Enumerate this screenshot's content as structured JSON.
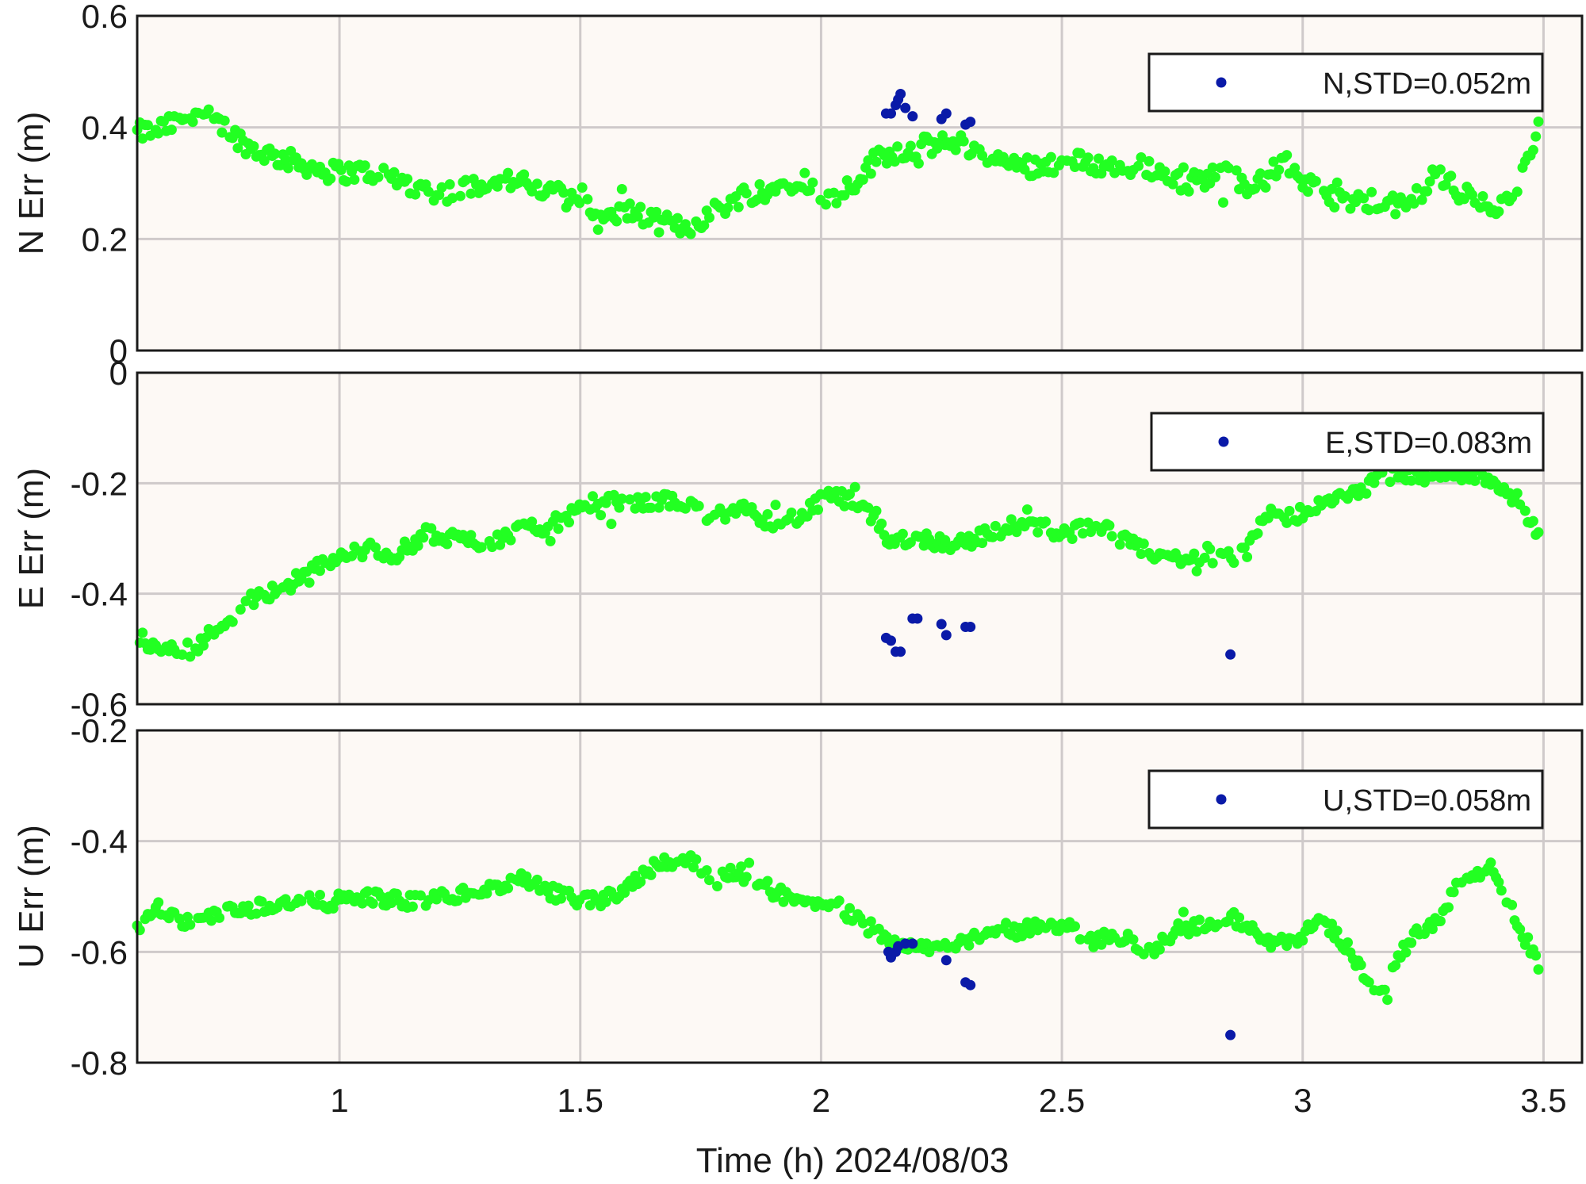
{
  "chart_data": {
    "type": "scatter",
    "xlabel": "Time (h)  2024/08/03",
    "xlim": [
      0.58,
      3.58
    ],
    "xticks": [
      "1",
      "1.5",
      "2",
      "2.5",
      "3",
      "3.5"
    ],
    "xtick_values": [
      1,
      1.5,
      2,
      2.5,
      3,
      3.5
    ],
    "grid": true,
    "colors": {
      "main": "#22ff22",
      "highlight": "#0a1aa8"
    },
    "panels": [
      {
        "ylabel": "N Err (m)",
        "ylim": [
          0,
          0.6
        ],
        "ytick_values": [
          0,
          0.2,
          0.4,
          0.6
        ],
        "yticks": [
          "0",
          "0.2",
          "0.4",
          "0.6"
        ],
        "legend": "N,STD=0.052m",
        "anchors": [
          [
            0.58,
            0.39
          ],
          [
            0.64,
            0.4
          ],
          [
            0.7,
            0.43
          ],
          [
            0.76,
            0.4
          ],
          [
            0.82,
            0.36
          ],
          [
            0.9,
            0.34
          ],
          [
            0.98,
            0.32
          ],
          [
            1.08,
            0.32
          ],
          [
            1.14,
            0.3
          ],
          [
            1.2,
            0.28
          ],
          [
            1.26,
            0.29
          ],
          [
            1.32,
            0.31
          ],
          [
            1.38,
            0.3
          ],
          [
            1.44,
            0.28
          ],
          [
            1.5,
            0.28
          ],
          [
            1.54,
            0.23
          ],
          [
            1.6,
            0.25
          ],
          [
            1.66,
            0.23
          ],
          [
            1.72,
            0.22
          ],
          [
            1.78,
            0.25
          ],
          [
            1.84,
            0.28
          ],
          [
            1.9,
            0.29
          ],
          [
            1.96,
            0.31
          ],
          [
            2.02,
            0.27
          ],
          [
            2.08,
            0.31
          ],
          [
            2.12,
            0.35
          ],
          [
            2.18,
            0.36
          ],
          [
            2.24,
            0.37
          ],
          [
            2.3,
            0.37
          ],
          [
            2.36,
            0.34
          ],
          [
            2.44,
            0.33
          ],
          [
            2.52,
            0.34
          ],
          [
            2.6,
            0.33
          ],
          [
            2.68,
            0.33
          ],
          [
            2.76,
            0.3
          ],
          [
            2.84,
            0.32
          ],
          [
            2.9,
            0.29
          ],
          [
            2.96,
            0.34
          ],
          [
            3.02,
            0.29
          ],
          [
            3.08,
            0.27
          ],
          [
            3.16,
            0.26
          ],
          [
            3.22,
            0.26
          ],
          [
            3.28,
            0.32
          ],
          [
            3.34,
            0.27
          ],
          [
            3.4,
            0.26
          ],
          [
            3.45,
            0.3
          ],
          [
            3.49,
            0.4
          ]
        ],
        "spread": 0.018,
        "highlight": [
          [
            2.135,
            0.425
          ],
          [
            2.145,
            0.425
          ],
          [
            2.155,
            0.44
          ],
          [
            2.16,
            0.45
          ],
          [
            2.165,
            0.46
          ],
          [
            2.175,
            0.435
          ],
          [
            2.19,
            0.42
          ],
          [
            2.25,
            0.415
          ],
          [
            2.26,
            0.425
          ],
          [
            2.3,
            0.405
          ],
          [
            2.31,
            0.41
          ]
        ]
      },
      {
        "ylabel": "E Err (m)",
        "ylim": [
          -0.6,
          0
        ],
        "ytick_values": [
          -0.6,
          -0.4,
          -0.2,
          0
        ],
        "yticks": [
          "-0.6",
          "-0.4",
          "-0.2",
          "0"
        ],
        "legend": "E,STD=0.083m",
        "anchors": [
          [
            0.58,
            -0.48
          ],
          [
            0.64,
            -0.5
          ],
          [
            0.7,
            -0.5
          ],
          [
            0.76,
            -0.45
          ],
          [
            0.82,
            -0.41
          ],
          [
            0.88,
            -0.39
          ],
          [
            0.94,
            -0.36
          ],
          [
            1.0,
            -0.33
          ],
          [
            1.06,
            -0.32
          ],
          [
            1.12,
            -0.33
          ],
          [
            1.18,
            -0.29
          ],
          [
            1.24,
            -0.3
          ],
          [
            1.3,
            -0.31
          ],
          [
            1.36,
            -0.29
          ],
          [
            1.42,
            -0.28
          ],
          [
            1.48,
            -0.26
          ],
          [
            1.54,
            -0.23
          ],
          [
            1.6,
            -0.24
          ],
          [
            1.66,
            -0.23
          ],
          [
            1.72,
            -0.24
          ],
          [
            1.78,
            -0.26
          ],
          [
            1.84,
            -0.25
          ],
          [
            1.9,
            -0.27
          ],
          [
            1.96,
            -0.26
          ],
          [
            2.02,
            -0.22
          ],
          [
            2.08,
            -0.24
          ],
          [
            2.14,
            -0.3
          ],
          [
            2.2,
            -0.3
          ],
          [
            2.28,
            -0.31
          ],
          [
            2.36,
            -0.29
          ],
          [
            2.42,
            -0.27
          ],
          [
            2.5,
            -0.29
          ],
          [
            2.58,
            -0.28
          ],
          [
            2.66,
            -0.32
          ],
          [
            2.74,
            -0.34
          ],
          [
            2.82,
            -0.33
          ],
          [
            2.88,
            -0.33
          ],
          [
            2.92,
            -0.26
          ],
          [
            2.98,
            -0.26
          ],
          [
            3.04,
            -0.24
          ],
          [
            3.12,
            -0.21
          ],
          [
            3.2,
            -0.18
          ],
          [
            3.26,
            -0.19
          ],
          [
            3.32,
            -0.18
          ],
          [
            3.38,
            -0.19
          ],
          [
            3.44,
            -0.22
          ],
          [
            3.49,
            -0.3
          ]
        ],
        "spread": 0.014,
        "highlight": [
          [
            2.135,
            -0.48
          ],
          [
            2.145,
            -0.485
          ],
          [
            2.155,
            -0.505
          ],
          [
            2.165,
            -0.505
          ],
          [
            2.19,
            -0.445
          ],
          [
            2.2,
            -0.445
          ],
          [
            2.25,
            -0.455
          ],
          [
            2.26,
            -0.475
          ],
          [
            2.3,
            -0.46
          ],
          [
            2.31,
            -0.46
          ],
          [
            2.85,
            -0.51
          ]
        ]
      },
      {
        "ylabel": "U Err (m)",
        "ylim": [
          -0.8,
          -0.2
        ],
        "ytick_values": [
          -0.8,
          -0.6,
          -0.4,
          -0.2
        ],
        "yticks": [
          "-0.8",
          "-0.6",
          "-0.4",
          "-0.2"
        ],
        "legend": "U,STD=0.058m",
        "anchors": [
          [
            0.58,
            -0.56
          ],
          [
            0.62,
            -0.52
          ],
          [
            0.68,
            -0.55
          ],
          [
            0.74,
            -0.53
          ],
          [
            0.82,
            -0.52
          ],
          [
            0.9,
            -0.51
          ],
          [
            0.98,
            -0.51
          ],
          [
            1.06,
            -0.5
          ],
          [
            1.14,
            -0.51
          ],
          [
            1.22,
            -0.5
          ],
          [
            1.3,
            -0.49
          ],
          [
            1.38,
            -0.47
          ],
          [
            1.46,
            -0.5
          ],
          [
            1.54,
            -0.51
          ],
          [
            1.6,
            -0.48
          ],
          [
            1.66,
            -0.44
          ],
          [
            1.72,
            -0.43
          ],
          [
            1.78,
            -0.47
          ],
          [
            1.84,
            -0.45
          ],
          [
            1.9,
            -0.49
          ],
          [
            1.96,
            -0.51
          ],
          [
            2.04,
            -0.52
          ],
          [
            2.1,
            -0.56
          ],
          [
            2.16,
            -0.58
          ],
          [
            2.22,
            -0.59
          ],
          [
            2.3,
            -0.58
          ],
          [
            2.36,
            -0.57
          ],
          [
            2.42,
            -0.56
          ],
          [
            2.5,
            -0.55
          ],
          [
            2.56,
            -0.58
          ],
          [
            2.62,
            -0.57
          ],
          [
            2.68,
            -0.6
          ],
          [
            2.74,
            -0.56
          ],
          [
            2.8,
            -0.55
          ],
          [
            2.86,
            -0.54
          ],
          [
            2.92,
            -0.58
          ],
          [
            2.98,
            -0.58
          ],
          [
            3.04,
            -0.54
          ],
          [
            3.1,
            -0.6
          ],
          [
            3.16,
            -0.68
          ],
          [
            3.22,
            -0.58
          ],
          [
            3.28,
            -0.54
          ],
          [
            3.34,
            -0.46
          ],
          [
            3.4,
            -0.45
          ],
          [
            3.44,
            -0.54
          ],
          [
            3.49,
            -0.62
          ]
        ],
        "spread": 0.013,
        "highlight": [
          [
            2.14,
            -0.6
          ],
          [
            2.145,
            -0.61
          ],
          [
            2.155,
            -0.6
          ],
          [
            2.16,
            -0.59
          ],
          [
            2.175,
            -0.585
          ],
          [
            2.19,
            -0.585
          ],
          [
            2.26,
            -0.615
          ],
          [
            2.3,
            -0.655
          ],
          [
            2.31,
            -0.66
          ],
          [
            2.85,
            -0.75
          ]
        ]
      }
    ]
  }
}
